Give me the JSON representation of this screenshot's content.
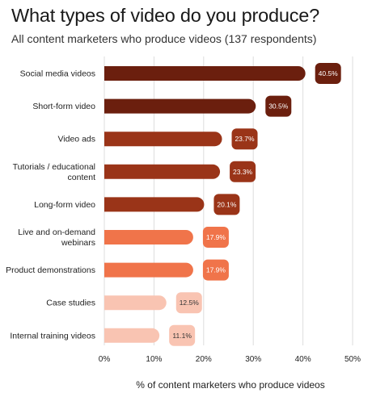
{
  "title": "What types of video do you produce?",
  "subtitle": "All content marketers who produce videos (137 respondents)",
  "chart_data": {
    "type": "bar",
    "orientation": "horizontal",
    "title": "What types of video do you produce?",
    "subtitle": "All content marketers who produce videos (137 respondents)",
    "xlabel": "% of content marketers who produce videos",
    "ylabel": "",
    "xlim": [
      0,
      50
    ],
    "xticks": [
      "0%",
      "10%",
      "20%",
      "30%",
      "40%",
      "50%"
    ],
    "grid": true,
    "categories": [
      "Social media videos",
      "Short-form video",
      "Video ads",
      "Tutorials / educational content",
      "Long-form video",
      "Live and on-demand webinars",
      "Product demonstrations",
      "Case studies",
      "Internal training videos"
    ],
    "category_lines": [
      [
        "Social media videos"
      ],
      [
        "Short-form video"
      ],
      [
        "Video ads"
      ],
      [
        "Tutorials / educational",
        "content"
      ],
      [
        "Long-form video"
      ],
      [
        "Live and on-demand",
        "webinars"
      ],
      [
        "Product demonstrations"
      ],
      [
        "Case studies"
      ],
      [
        "Internal training videos"
      ]
    ],
    "values": [
      40.5,
      30.5,
      23.7,
      23.3,
      20.1,
      17.9,
      17.9,
      12.5,
      11.1
    ],
    "value_labels": [
      "40.5%",
      "30.5%",
      "23.7%",
      "23.3%",
      "20.1%",
      "17.9%",
      "17.9%",
      "12.5%",
      "11.1%"
    ],
    "colors": [
      "#6b1f0e",
      "#6b1f0e",
      "#9a3418",
      "#9a3418",
      "#9a3418",
      "#f0744a",
      "#f0744a",
      "#f9c4b2",
      "#f9c4b2"
    ],
    "label_text_color": [
      "#ffffff",
      "#ffffff",
      "#ffffff",
      "#ffffff",
      "#ffffff",
      "#ffffff",
      "#ffffff",
      "#333333",
      "#333333"
    ]
  }
}
